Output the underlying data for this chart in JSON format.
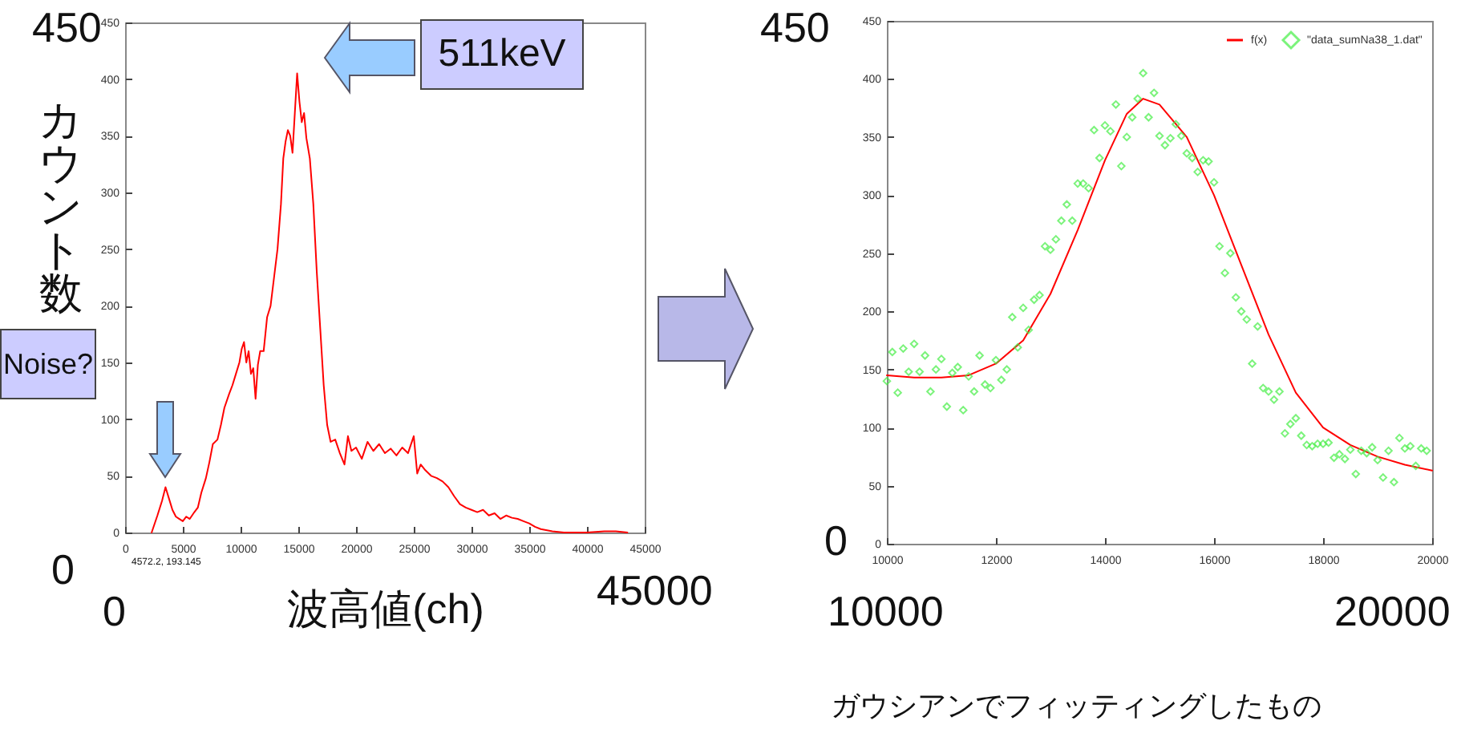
{
  "chart_data": [
    {
      "type": "line",
      "xlabel": "波高値(ch)",
      "ylabel": "カウント数",
      "xlim": [
        0,
        45000
      ],
      "ylim": [
        0,
        450
      ],
      "xticks": [
        0,
        5000,
        10000,
        15000,
        20000,
        25000,
        30000,
        35000,
        40000,
        45000
      ],
      "yticks": [
        0,
        50,
        100,
        150,
        200,
        250,
        300,
        350,
        400,
        450
      ],
      "line_style": "solid",
      "series": [
        {
          "color": "#ff0000",
          "x": [
            2300,
            2800,
            3200,
            3500,
            3800,
            4100,
            4400,
            4700,
            5000,
            5300,
            5600,
            6000,
            6300,
            6600,
            7000,
            7300,
            7600,
            8000,
            8300,
            8600,
            9000,
            9300,
            9600,
            9900,
            10100,
            10300,
            10500,
            10700,
            10900,
            11100,
            11300,
            11500,
            11700,
            12000,
            12300,
            12600,
            12900,
            13200,
            13500,
            13700,
            13900,
            14100,
            14300,
            14500,
            14700,
            14900,
            15100,
            15300,
            15500,
            15700,
            16000,
            16300,
            16600,
            16900,
            17200,
            17500,
            17800,
            18200,
            18600,
            19000,
            19300,
            19600,
            20000,
            20500,
            21000,
            21500,
            22000,
            22500,
            23000,
            23500,
            24000,
            24500,
            25000,
            25300,
            25600,
            26000,
            26500,
            27000,
            27500,
            28000,
            28500,
            29000,
            29500,
            30000,
            30500,
            31000,
            31500,
            32000,
            32500,
            33000,
            33500,
            34000,
            34500,
            35000,
            35500,
            36000,
            37000,
            38000,
            40000,
            41500,
            42500,
            43500
          ],
          "values": [
            0,
            15,
            28,
            40,
            30,
            20,
            14,
            12,
            10,
            14,
            12,
            18,
            22,
            35,
            48,
            62,
            78,
            82,
            95,
            110,
            122,
            130,
            140,
            150,
            162,
            168,
            150,
            160,
            140,
            145,
            118,
            148,
            160,
            160,
            190,
            200,
            225,
            250,
            290,
            330,
            345,
            355,
            350,
            335,
            370,
            405,
            380,
            362,
            370,
            348,
            330,
            290,
            230,
            180,
            130,
            95,
            80,
            82,
            70,
            60,
            85,
            72,
            75,
            65,
            80,
            72,
            78,
            70,
            74,
            68,
            75,
            70,
            85,
            52,
            60,
            55,
            50,
            48,
            45,
            40,
            32,
            25,
            22,
            20,
            18,
            20,
            15,
            17,
            12,
            15,
            13,
            12,
            10,
            8,
            5,
            3,
            1,
            0,
            0,
            1,
            1,
            0
          ]
        }
      ],
      "annotations": [
        "450",
        "0",
        "0",
        "45000",
        "Noise?",
        "511keV",
        "4572.2, 193.145"
      ]
    },
    {
      "type": "line",
      "xlim": [
        10000,
        20000
      ],
      "ylim": [
        0,
        450
      ],
      "xticks": [
        10000,
        12000,
        14000,
        16000,
        18000,
        20000
      ],
      "yticks": [
        0,
        50,
        100,
        150,
        200,
        250,
        300,
        350,
        400,
        450
      ],
      "legend": "top right",
      "series": [
        {
          "name": "f(x)",
          "color": "#ff0000",
          "line_style": "solid",
          "x": [
            10000,
            10500,
            11000,
            11500,
            12000,
            12500,
            13000,
            13500,
            14000,
            14400,
            14700,
            15000,
            15500,
            16000,
            16500,
            17000,
            17500,
            18000,
            18500,
            19000,
            19500,
            20000
          ],
          "values": [
            145,
            143,
            143,
            145,
            155,
            175,
            215,
            270,
            330,
            370,
            383,
            378,
            350,
            300,
            240,
            180,
            130,
            100,
            85,
            75,
            68,
            63
          ]
        },
        {
          "name": "\"data_sumNa38_1.dat\"",
          "type": "scatter",
          "marker": "diamond",
          "color": "#44ee44",
          "x": [
            10000,
            10100,
            10200,
            10300,
            10400,
            10500,
            10600,
            10700,
            10800,
            10900,
            11000,
            11100,
            11200,
            11300,
            11400,
            11500,
            11600,
            11700,
            11800,
            11900,
            12000,
            12100,
            12200,
            12300,
            12400,
            12500,
            12600,
            12700,
            12800,
            12900,
            13000,
            13100,
            13200,
            13300,
            13400,
            13500,
            13600,
            13700,
            13800,
            13900,
            14000,
            14100,
            14200,
            14300,
            14400,
            14500,
            14600,
            14700,
            14800,
            14900,
            15000,
            15100,
            15200,
            15300,
            15400,
            15500,
            15600,
            15700,
            15800,
            15900,
            16000,
            16100,
            16200,
            16300,
            16400,
            16500,
            16600,
            16700,
            16800,
            16900,
            17000,
            17100,
            17200,
            17300,
            17400,
            17500,
            17600,
            17700,
            17800,
            17900,
            18000,
            18100,
            18200,
            18300,
            18400,
            18500,
            18600,
            18700,
            18800,
            18900,
            19000,
            19100,
            19200,
            19300,
            19400,
            19500,
            19600,
            19700,
            19800,
            19900
          ],
          "values": [
            140,
            165,
            130,
            168,
            148,
            172,
            148,
            162,
            131,
            150,
            159,
            118,
            147,
            152,
            115,
            144,
            131,
            162,
            137,
            134,
            158,
            141,
            150,
            195,
            169,
            203,
            184,
            210,
            214,
            256,
            253,
            262,
            278,
            292,
            278,
            310,
            310,
            306,
            356,
            332,
            360,
            355,
            378,
            325,
            350,
            367,
            383,
            405,
            367,
            388,
            351,
            343,
            349,
            361,
            351,
            336,
            332,
            320,
            330,
            329,
            311,
            256,
            233,
            250,
            212,
            200,
            193,
            155,
            187,
            134,
            131,
            124,
            131,
            95,
            103,
            108,
            93,
            85,
            84,
            86,
            86,
            87,
            74,
            77,
            73,
            81,
            60,
            80,
            78,
            83,
            72,
            57,
            80,
            53,
            91,
            82,
            84,
            67,
            82,
            80
          ]
        }
      ],
      "annotations": [
        "450",
        "0",
        "10000",
        "20000",
        "ガウシアンでフィッティングしたもの"
      ]
    }
  ]
}
